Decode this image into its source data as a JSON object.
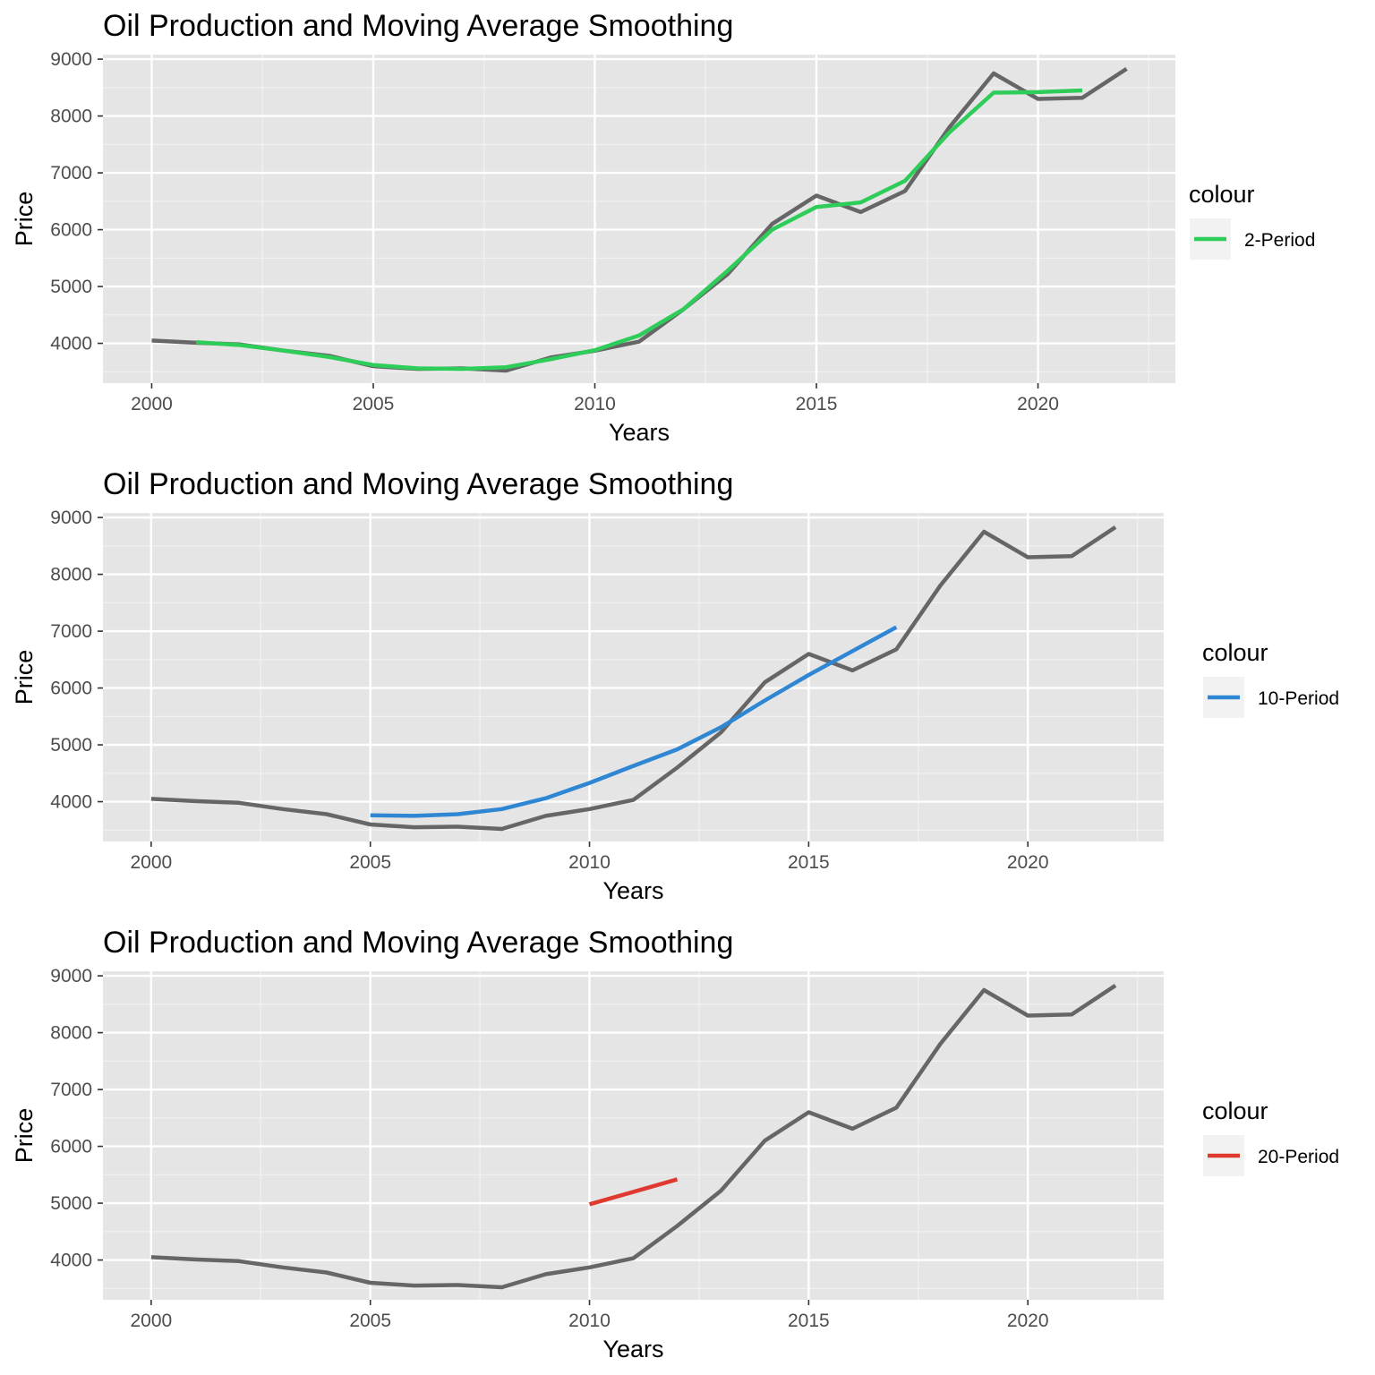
{
  "chart_data": [
    {
      "type": "line",
      "title": "Oil Production and Moving Average Smoothing",
      "xlabel": "Years",
      "ylabel": "Price",
      "xlim": [
        1998.9,
        2023.1
      ],
      "ylim": [
        3300,
        9080
      ],
      "xticks": [
        2000,
        2005,
        2010,
        2015,
        2020
      ],
      "yticks": [
        4000,
        5000,
        6000,
        7000,
        8000,
        9000
      ],
      "grid": true,
      "legend": {
        "title": "colour",
        "position": "right"
      },
      "series": [
        {
          "role": "original",
          "color": "#666666",
          "x": [
            2000,
            2001,
            2002,
            2003,
            2004,
            2005,
            2006,
            2007,
            2008,
            2009,
            2010,
            2011,
            2012,
            2013,
            2014,
            2015,
            2016,
            2017,
            2018,
            2019,
            2020,
            2021,
            2022
          ],
          "y": [
            4050,
            4010,
            3980,
            3870,
            3780,
            3600,
            3550,
            3560,
            3520,
            3750,
            3870,
            4030,
            4600,
            5220,
            6100,
            6600,
            6310,
            6680,
            7800,
            8750,
            8300,
            8320,
            8830
          ]
        },
        {
          "role": "moving-average",
          "name": "2-Period",
          "color": "#2ecc59",
          "x": [
            2001,
            2002,
            2003,
            2004,
            2005,
            2006,
            2007,
            2008,
            2009,
            2010,
            2011,
            2012,
            2013,
            2014,
            2015,
            2016,
            2017,
            2018,
            2019,
            2020,
            2021
          ],
          "y": [
            4020,
            3970,
            3870,
            3760,
            3620,
            3560,
            3550,
            3580,
            3720,
            3880,
            4140,
            4600,
            5280,
            6000,
            6400,
            6480,
            6860,
            7710,
            8410,
            8420,
            8450
          ]
        }
      ]
    },
    {
      "type": "line",
      "title": "Oil Production and Moving Average Smoothing",
      "xlabel": "Years",
      "ylabel": "Price",
      "xlim": [
        1998.9,
        2023.1
      ],
      "ylim": [
        3300,
        9080
      ],
      "xticks": [
        2000,
        2005,
        2010,
        2015,
        2020
      ],
      "yticks": [
        4000,
        5000,
        6000,
        7000,
        8000,
        9000
      ],
      "grid": true,
      "legend": {
        "title": "colour",
        "position": "right"
      },
      "series": [
        {
          "role": "original",
          "color": "#666666",
          "x": [
            2000,
            2001,
            2002,
            2003,
            2004,
            2005,
            2006,
            2007,
            2008,
            2009,
            2010,
            2011,
            2012,
            2013,
            2014,
            2015,
            2016,
            2017,
            2018,
            2019,
            2020,
            2021,
            2022
          ],
          "y": [
            4050,
            4010,
            3980,
            3870,
            3780,
            3600,
            3550,
            3560,
            3520,
            3750,
            3870,
            4030,
            4600,
            5220,
            6100,
            6600,
            6310,
            6680,
            7800,
            8750,
            8300,
            8320,
            8830
          ]
        },
        {
          "role": "moving-average",
          "name": "10-Period",
          "color": "#2f87d4",
          "x": [
            2005,
            2006,
            2007,
            2008,
            2009,
            2010,
            2011,
            2012,
            2013,
            2014,
            2015,
            2016,
            2017
          ],
          "y": [
            3760,
            3750,
            3780,
            3870,
            4060,
            4330,
            4630,
            4920,
            5310,
            5780,
            6230,
            6650,
            7070
          ]
        }
      ]
    },
    {
      "type": "line",
      "title": "Oil Production and Moving Average Smoothing",
      "xlabel": "Years",
      "ylabel": "Price",
      "xlim": [
        1998.9,
        2023.1
      ],
      "ylim": [
        3300,
        9080
      ],
      "xticks": [
        2000,
        2005,
        2010,
        2015,
        2020
      ],
      "yticks": [
        4000,
        5000,
        6000,
        7000,
        8000,
        9000
      ],
      "grid": true,
      "legend": {
        "title": "colour",
        "position": "right"
      },
      "series": [
        {
          "role": "original",
          "color": "#666666",
          "x": [
            2000,
            2001,
            2002,
            2003,
            2004,
            2005,
            2006,
            2007,
            2008,
            2009,
            2010,
            2011,
            2012,
            2013,
            2014,
            2015,
            2016,
            2017,
            2018,
            2019,
            2020,
            2021,
            2022
          ],
          "y": [
            4050,
            4010,
            3980,
            3870,
            3780,
            3600,
            3550,
            3560,
            3520,
            3750,
            3870,
            4030,
            4600,
            5220,
            6100,
            6600,
            6310,
            6680,
            7800,
            8750,
            8300,
            8320,
            8830
          ]
        },
        {
          "role": "moving-average",
          "name": "20-Period",
          "color": "#e0392f",
          "x": [
            2010,
            2011,
            2012
          ],
          "y": [
            4980,
            5200,
            5420
          ]
        }
      ]
    }
  ]
}
